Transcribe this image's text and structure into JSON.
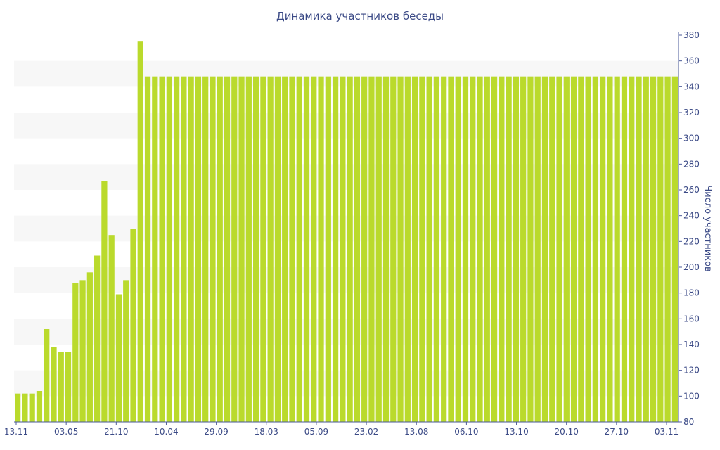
{
  "chart_data": {
    "type": "bar",
    "title": "Динамика участников беседы",
    "ylabel": "Число участников",
    "xlabel": "",
    "ylim": [
      80,
      380
    ],
    "y_ticks": [
      80,
      100,
      120,
      140,
      160,
      180,
      200,
      220,
      240,
      260,
      280,
      300,
      320,
      340,
      360,
      380
    ],
    "y_axis_position": "right",
    "grid": "alternating horizontal bands",
    "legend": "none",
    "x_tick_labels": [
      "13.11",
      "03.05",
      "21.10",
      "10.04",
      "29.09",
      "18.03",
      "05.09",
      "23.02",
      "13.08",
      "06.10",
      "13.10",
      "20.10",
      "27.10",
      "03.11"
    ],
    "colors": {
      "bar": "#bada2c",
      "text": "#3b4a86",
      "band": "#f7f7f7",
      "axis": "#4a5a9a"
    },
    "values": [
      102,
      102,
      102,
      104,
      152,
      138,
      134,
      134,
      188,
      190,
      196,
      209,
      267,
      225,
      179,
      190,
      230,
      375,
      348,
      348,
      348,
      348,
      348,
      348,
      348,
      348,
      348,
      348,
      348,
      348,
      348,
      348,
      348,
      348,
      348,
      348,
      348,
      348,
      348,
      348,
      348,
      348,
      348,
      348,
      348,
      348,
      348,
      348,
      348,
      348,
      348,
      348,
      348,
      348,
      348,
      348,
      348,
      348,
      348,
      348,
      348,
      348,
      348,
      348,
      348,
      348,
      348,
      348,
      348,
      348,
      348,
      348,
      348,
      348,
      348,
      348,
      348,
      348,
      348,
      348,
      348,
      348,
      348,
      348,
      348,
      348,
      348,
      348,
      348,
      348,
      348,
      348
    ]
  }
}
